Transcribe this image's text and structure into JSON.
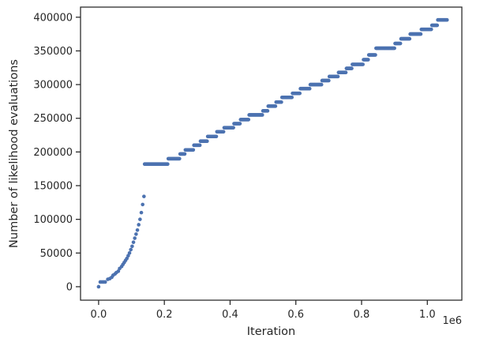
{
  "chart_data": {
    "type": "scatter",
    "title": "",
    "xlabel": "Iteration",
    "ylabel": "Number of likelihood evaluations",
    "x_offset_label": "1e6",
    "xlim": [
      -55000,
      1105000
    ],
    "ylim": [
      -20000,
      415000
    ],
    "grid": false,
    "legend": "none",
    "marker_color": "#4c72b0",
    "x_ticks": [
      {
        "value": 0,
        "label": "0.0"
      },
      {
        "value": 200000,
        "label": "0.2"
      },
      {
        "value": 400000,
        "label": "0.4"
      },
      {
        "value": 600000,
        "label": "0.6"
      },
      {
        "value": 800000,
        "label": "0.8"
      },
      {
        "value": 1000000,
        "label": "1.0"
      }
    ],
    "y_ticks": [
      {
        "value": 0,
        "label": "0"
      },
      {
        "value": 50000,
        "label": "50000"
      },
      {
        "value": 100000,
        "label": "100000"
      },
      {
        "value": 150000,
        "label": "150000"
      },
      {
        "value": 200000,
        "label": "200000"
      },
      {
        "value": 250000,
        "label": "250000"
      },
      {
        "value": 300000,
        "label": "300000"
      },
      {
        "value": 350000,
        "label": "350000"
      },
      {
        "value": 400000,
        "label": "400000"
      }
    ],
    "series": [
      {
        "x": [
          0,
          5000,
          10000,
          15000,
          20000,
          28000,
          34000,
          40000,
          44000,
          50000,
          54000,
          60000,
          64000,
          70000,
          74000,
          78000,
          82000,
          86000,
          90000,
          94000,
          98000,
          102000,
          106000,
          110000,
          114000,
          118000,
          122000,
          126000,
          130000,
          134000,
          138000
        ],
        "y": [
          0,
          7000,
          7000,
          7000,
          7000,
          11000,
          12000,
          14000,
          17000,
          19000,
          21000,
          23000,
          27000,
          30000,
          33000,
          36000,
          39000,
          42000,
          46000,
          50000,
          55000,
          60000,
          66000,
          72000,
          78000,
          84000,
          92000,
          100000,
          110000,
          122000,
          134000
        ]
      }
    ],
    "plateaus": [
      {
        "x_start": 140000,
        "x_end": 210000,
        "y": 182000
      },
      {
        "x_start": 212000,
        "x_end": 246000,
        "y": 190000
      },
      {
        "x_start": 248000,
        "x_end": 262000,
        "y": 197000
      },
      {
        "x_start": 264000,
        "x_end": 288000,
        "y": 203000
      },
      {
        "x_start": 290000,
        "x_end": 308000,
        "y": 210000
      },
      {
        "x_start": 310000,
        "x_end": 330000,
        "y": 216000
      },
      {
        "x_start": 332000,
        "x_end": 358000,
        "y": 223000
      },
      {
        "x_start": 360000,
        "x_end": 380000,
        "y": 230000
      },
      {
        "x_start": 382000,
        "x_end": 410000,
        "y": 236000
      },
      {
        "x_start": 412000,
        "x_end": 430000,
        "y": 242000
      },
      {
        "x_start": 432000,
        "x_end": 456000,
        "y": 248000
      },
      {
        "x_start": 458000,
        "x_end": 498000,
        "y": 255000
      },
      {
        "x_start": 500000,
        "x_end": 514000,
        "y": 261000
      },
      {
        "x_start": 516000,
        "x_end": 538000,
        "y": 268000
      },
      {
        "x_start": 540000,
        "x_end": 556000,
        "y": 274000
      },
      {
        "x_start": 558000,
        "x_end": 588000,
        "y": 281000
      },
      {
        "x_start": 590000,
        "x_end": 612000,
        "y": 287000
      },
      {
        "x_start": 614000,
        "x_end": 642000,
        "y": 294000
      },
      {
        "x_start": 644000,
        "x_end": 678000,
        "y": 300000
      },
      {
        "x_start": 680000,
        "x_end": 700000,
        "y": 306000
      },
      {
        "x_start": 702000,
        "x_end": 728000,
        "y": 312000
      },
      {
        "x_start": 730000,
        "x_end": 752000,
        "y": 318000
      },
      {
        "x_start": 754000,
        "x_end": 770000,
        "y": 324000
      },
      {
        "x_start": 772000,
        "x_end": 804000,
        "y": 330000
      },
      {
        "x_start": 806000,
        "x_end": 820000,
        "y": 337000
      },
      {
        "x_start": 822000,
        "x_end": 842000,
        "y": 344000
      },
      {
        "x_start": 844000,
        "x_end": 870000,
        "y": 354000
      },
      {
        "x_start": 872000,
        "x_end": 900000,
        "y": 354000
      },
      {
        "x_start": 902000,
        "x_end": 918000,
        "y": 361000
      },
      {
        "x_start": 920000,
        "x_end": 946000,
        "y": 368000
      },
      {
        "x_start": 948000,
        "x_end": 980000,
        "y": 375000
      },
      {
        "x_start": 982000,
        "x_end": 1012000,
        "y": 382000
      },
      {
        "x_start": 1014000,
        "x_end": 1030000,
        "y": 388000
      },
      {
        "x_start": 1032000,
        "x_end": 1060000,
        "y": 396000
      }
    ]
  }
}
